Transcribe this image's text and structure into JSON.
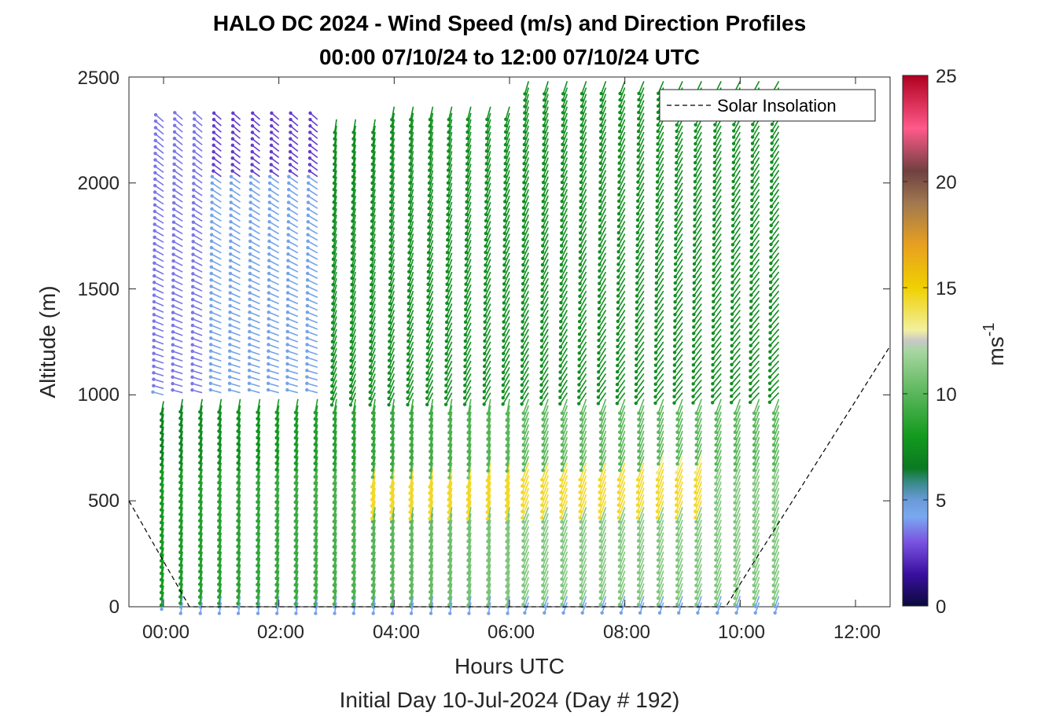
{
  "chart_data": {
    "type": "scatter",
    "title": "HALO DC 2024 - Wind Speed (m/s) and Direction Profiles",
    "subtitle": "00:00 07/10/24 to 12:00 07/10/24  UTC",
    "xlabel": "Hours UTC",
    "xlabel2": "Initial Day 10-Jul-2024 (Day # 192)",
    "ylabel": "Altitude (m)",
    "xlim": [
      -0.6,
      12.6
    ],
    "ylim": [
      0,
      2500
    ],
    "x_ticks": [
      0,
      2,
      4,
      6,
      8,
      10,
      12
    ],
    "x_tick_labels": [
      "00:00",
      "02:00",
      "04:00",
      "06:00",
      "08:00",
      "10:00",
      "12:00"
    ],
    "y_ticks": [
      0,
      500,
      1000,
      1500,
      2000,
      2500
    ],
    "y_tick_labels": [
      "0",
      "500",
      "1000",
      "1500",
      "2000",
      "2500"
    ],
    "colorbar": {
      "label": "ms",
      "label_superscript": "-1",
      "range": [
        0,
        25
      ],
      "ticks": [
        0,
        5,
        10,
        15,
        20,
        25
      ],
      "tick_labels": [
        "0",
        "5",
        "10",
        "15",
        "20",
        "25"
      ],
      "stops": [
        {
          "v": 0,
          "c": "#0a0a3c"
        },
        {
          "v": 1.5,
          "c": "#3a0fa0"
        },
        {
          "v": 3,
          "c": "#7a52e0"
        },
        {
          "v": 4.2,
          "c": "#7aa8f0"
        },
        {
          "v": 5,
          "c": "#6a9ad8"
        },
        {
          "v": 5.8,
          "c": "#3a8a8a"
        },
        {
          "v": 6.5,
          "c": "#0a7a20"
        },
        {
          "v": 8,
          "c": "#139a1f"
        },
        {
          "v": 10,
          "c": "#5ab65a"
        },
        {
          "v": 12,
          "c": "#a6d6a0"
        },
        {
          "v": 12.5,
          "c": "#c8c8c8"
        },
        {
          "v": 13,
          "c": "#f2f0a0"
        },
        {
          "v": 15,
          "c": "#f0d000"
        },
        {
          "v": 17,
          "c": "#e8a020"
        },
        {
          "v": 19,
          "c": "#a07850"
        },
        {
          "v": 20.5,
          "c": "#704040"
        },
        {
          "v": 22.5,
          "c": "#ff5a8a"
        },
        {
          "v": 25,
          "c": "#b00020"
        }
      ]
    },
    "legend": {
      "entries": [
        "Solar Insolation"
      ],
      "placement": "top-right"
    },
    "solar_insolation_line": {
      "style": "dashed",
      "x": [
        -0.6,
        0.45,
        9.75,
        12.6
      ],
      "y": [
        500,
        0,
        0,
        1230
      ]
    },
    "profile_interval_hours": 0.3333,
    "profile_hours": [
      0,
      0.33,
      0.67,
      1,
      1.33,
      1.67,
      2,
      2.33,
      2.67,
      3,
      3.33,
      3.67,
      4,
      4.33,
      4.67,
      5,
      5.33,
      5.67,
      6,
      6.33,
      6.67,
      7,
      7.33,
      7.67,
      8,
      8.33,
      8.67,
      9,
      9.33,
      9.67,
      10,
      10.33,
      10.67
    ],
    "vertical_spacing_m": 30,
    "speed_structure": [
      {
        "layer": "surface",
        "alt_range": [
          0,
          60
        ],
        "speed_mps": 4.5
      },
      {
        "layer": "nocturnal_jet_core",
        "hours": [
          3.67,
          9.33
        ],
        "alt_range": [
          500,
          700
        ],
        "speed_mps": 14.5
      },
      {
        "layer": "low_level",
        "alt_range": [
          60,
          1000
        ],
        "speed_mps": 8.5
      },
      {
        "layer": "mid_level_early",
        "hours": [
          0,
          3
        ],
        "alt_range": [
          1000,
          2000
        ],
        "speed_mps": 4.5
      },
      {
        "layer": "upper_early",
        "hours": [
          0,
          2.5
        ],
        "alt_range": [
          2000,
          2400
        ],
        "speed_mps": 2.5
      },
      {
        "layer": "mid_upper_late",
        "hours": [
          5,
          10.67
        ],
        "alt_range": [
          1000,
          2500
        ],
        "speed_mps": 7.5
      }
    ],
    "direction_note": "Arrows point toward the wind-flow direction; mostly from the southwest at low levels, veering with height."
  }
}
